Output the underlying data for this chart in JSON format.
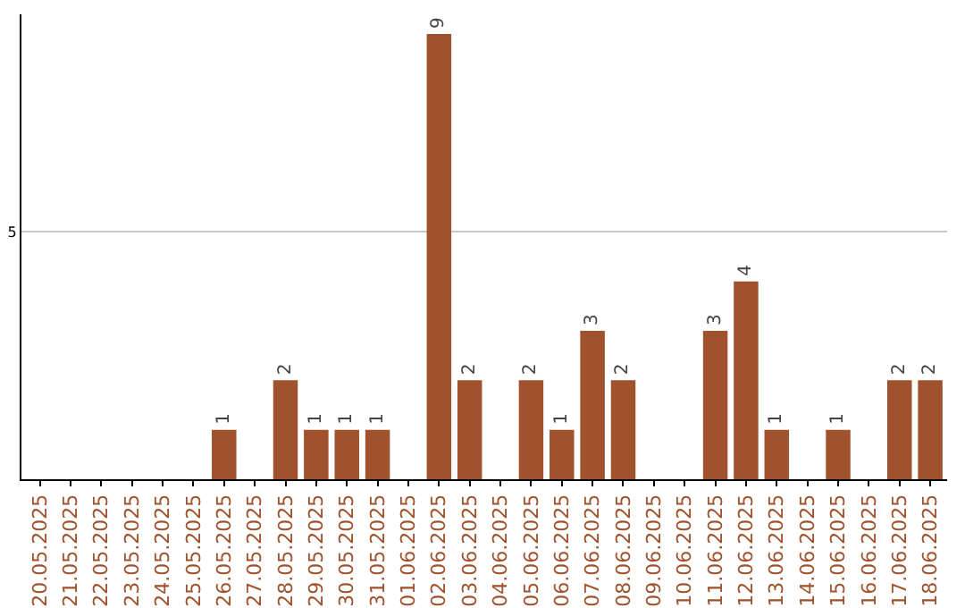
{
  "chart_data": {
    "type": "bar",
    "categories": [
      "20.05.2025",
      "21.05.2025",
      "22.05.2025",
      "23.05.2025",
      "24.05.2025",
      "25.05.2025",
      "26.05.2025",
      "27.05.2025",
      "28.05.2025",
      "29.05.2025",
      "30.05.2025",
      "31.05.2025",
      "01.06.2025",
      "02.06.2025",
      "03.06.2025",
      "04.06.2025",
      "05.06.2025",
      "06.06.2025",
      "07.06.2025",
      "08.06.2025",
      "09.06.2025",
      "10.06.2025",
      "11.06.2025",
      "12.06.2025",
      "13.06.2025",
      "14.06.2025",
      "15.06.2025",
      "16.06.2025",
      "17.06.2025",
      "18.06.2025"
    ],
    "values": [
      null,
      null,
      null,
      null,
      null,
      null,
      1,
      null,
      2,
      1,
      1,
      1,
      null,
      9,
      2,
      null,
      2,
      1,
      3,
      2,
      null,
      null,
      3,
      4,
      1,
      null,
      1,
      null,
      2,
      2
    ],
    "color": "#a0522d",
    "ylim": [
      0,
      9.4
    ],
    "yticks": [
      {
        "value": 0,
        "label": null
      },
      5
    ],
    "grid": "y",
    "data_labels": true
  }
}
